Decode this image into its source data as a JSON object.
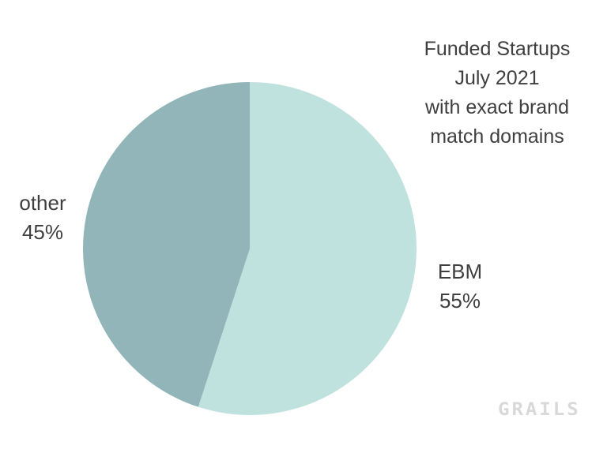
{
  "title": {
    "lines": [
      "Funded Startups",
      "July 2021",
      "with exact brand",
      "match domains"
    ]
  },
  "chart_data": {
    "type": "pie",
    "title": "Funded Startups July 2021 with exact brand match domains",
    "slices": [
      {
        "label": "EBM",
        "value": 55,
        "percent_label": "55%",
        "color": "#c0e2de"
      },
      {
        "label": "other",
        "value": 45,
        "percent_label": "45%",
        "color": "#91b5b8"
      }
    ],
    "start_angle_deg": 0,
    "direction": "clockwise",
    "legend_position": "none",
    "labels_position": "outside"
  },
  "watermark": {
    "text": "GRAILS",
    "color": "#d9d9d9"
  },
  "colors": {
    "background": "#ffffff",
    "text": "#3f3f3f"
  }
}
